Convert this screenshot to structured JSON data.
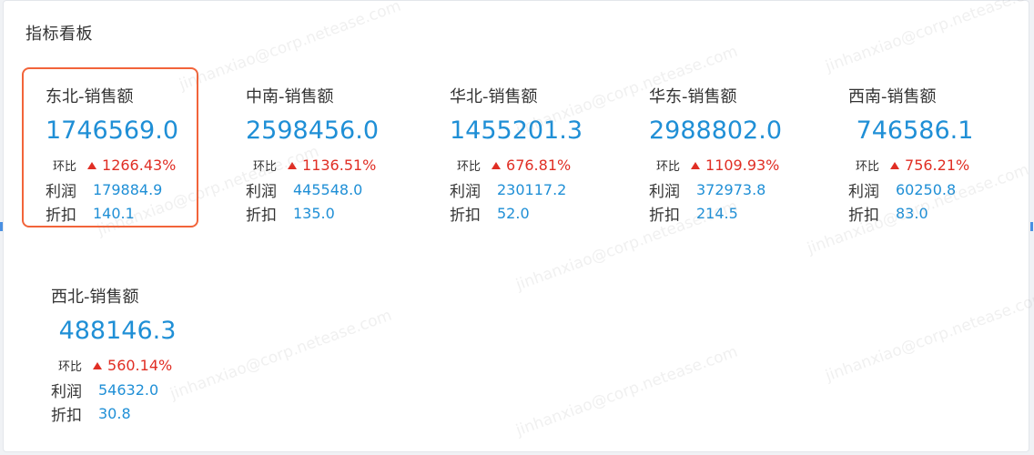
{
  "panel": {
    "title": "指标看板"
  },
  "labels": {
    "ratio": "环比",
    "profit": "利润",
    "discount": "折扣"
  },
  "colors": {
    "value": "#1f8fd6",
    "increase": "#e02e24",
    "selected_border": "#f2643a"
  },
  "cards": [
    {
      "title": "东北-销售额",
      "value": "1746569.0",
      "ratio": "1266.43%",
      "profit": "179884.9",
      "discount": "140.1",
      "selected": true
    },
    {
      "title": "中南-销售额",
      "value": "2598456.0",
      "ratio": "1136.51%",
      "profit": "445548.0",
      "discount": "135.0",
      "selected": false
    },
    {
      "title": "华北-销售额",
      "value": "1455201.3",
      "ratio": "676.81%",
      "profit": "230117.2",
      "discount": "52.0",
      "selected": false
    },
    {
      "title": "华东-销售额",
      "value": "2988802.0",
      "ratio": "1109.93%",
      "profit": "372973.8",
      "discount": "214.5",
      "selected": false
    },
    {
      "title": "西南-销售额",
      "value": "746586.1",
      "ratio": "756.21%",
      "profit": "60250.8",
      "discount": "83.0",
      "selected": false
    },
    {
      "title": "西北-销售额",
      "value": "488146.3",
      "ratio": "560.14%",
      "profit": "54632.0",
      "discount": "30.8",
      "selected": false
    }
  ],
  "watermark": {
    "text": "jinhanxiao@corp.netease.com"
  }
}
